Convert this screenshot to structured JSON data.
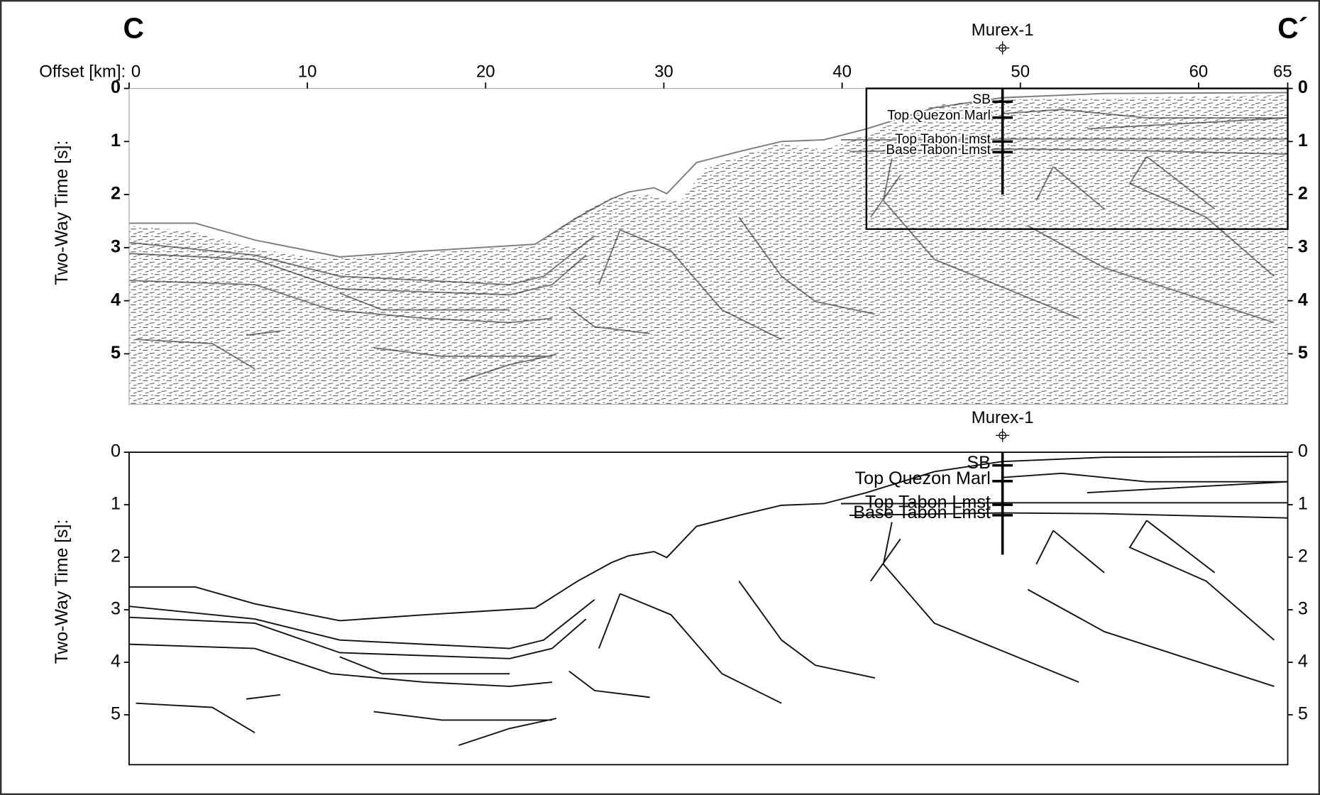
{
  "figure": {
    "left_label": "C",
    "right_label": "C´",
    "well": "Murex-1",
    "well_offset": 49,
    "x_axis": {
      "label": "Offset [km]:",
      "xlim": [
        0,
        65
      ],
      "ticks": [
        0,
        10,
        20,
        30,
        40,
        50,
        60,
        65
      ]
    },
    "panels": [
      {
        "y_axis": {
          "label": "Two-Way Time [s]:",
          "ylim": [
            0,
            5.95
          ],
          "ticks": [
            0,
            1,
            2,
            3,
            4,
            5
          ]
        },
        "well_depth": 2.0
      },
      {
        "y_axis": {
          "label": "Two-Way Time [s]:",
          "ylim": [
            0,
            5.95
          ],
          "ticks": [
            0,
            1,
            2,
            3,
            4,
            5
          ]
        },
        "well_depth": 1.95
      }
    ],
    "horizons": [
      {
        "name": "SB",
        "twt": 0.25
      },
      {
        "name": "Top Quezon Marl",
        "twt": 0.55
      },
      {
        "name": "Top Tabon Lmst",
        "twt": 1.0
      },
      {
        "name": "Base Tabon Lmst",
        "twt": 1.2
      }
    ]
  }
}
